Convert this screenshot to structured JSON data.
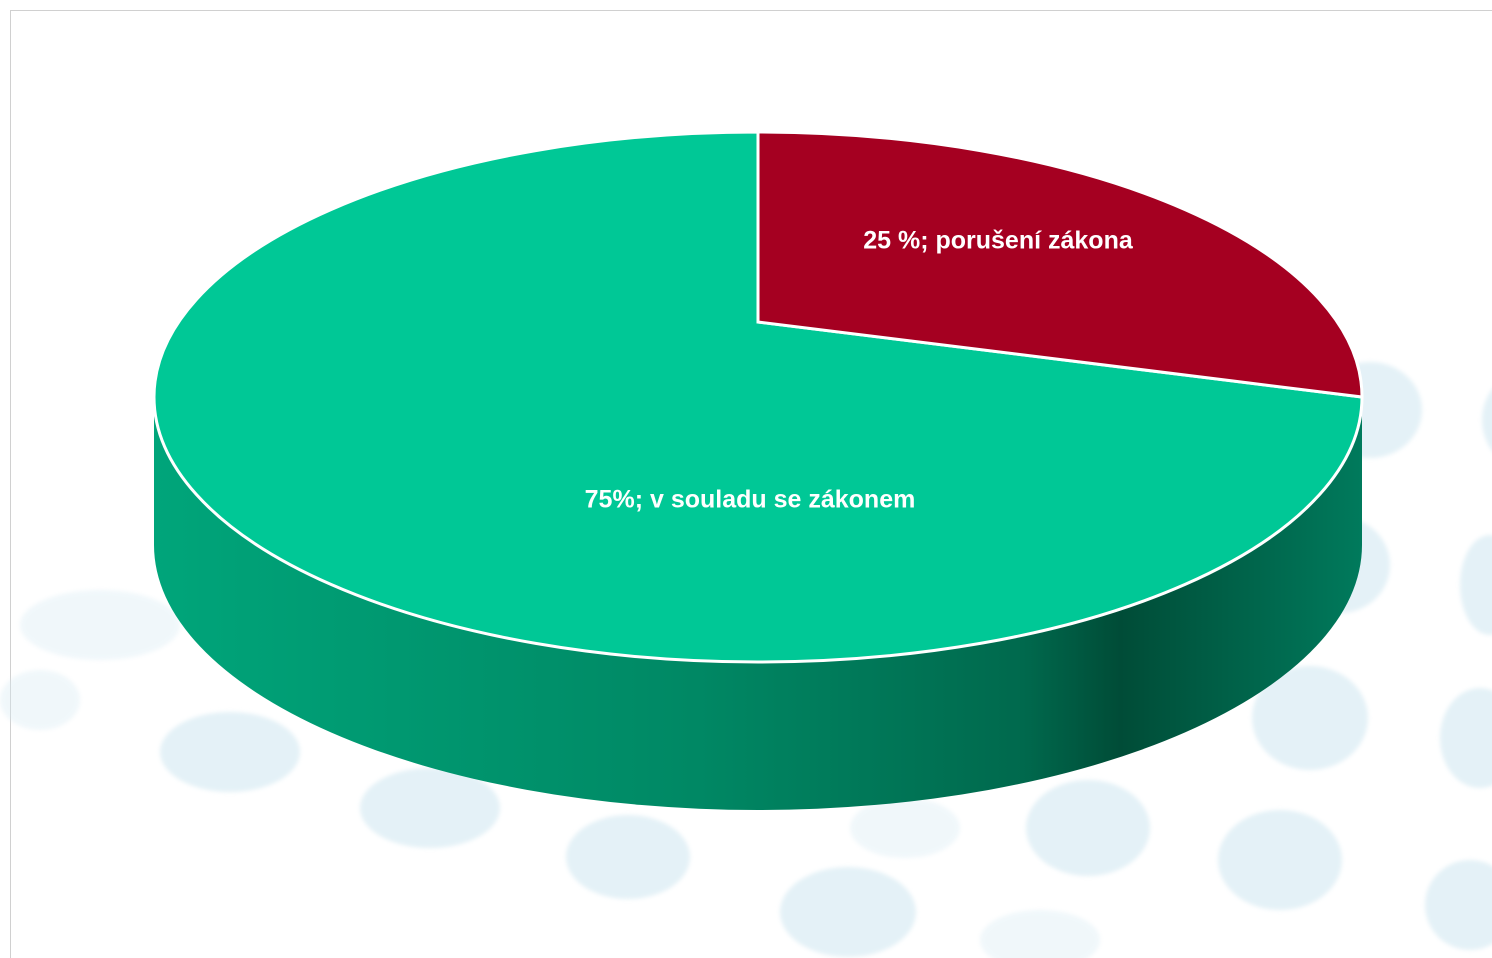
{
  "chart_data": {
    "type": "pie",
    "style": "3d",
    "slices": [
      {
        "label": "v souladu se zákonem",
        "value": 75,
        "display_label": "75%; v souladu se zákonem",
        "color": "#00C896",
        "side_color": "#007A5C"
      },
      {
        "label": "porušení zákona",
        "value": 25,
        "display_label": "25 %; porušení zákona",
        "color": "#A50021",
        "side_color": "#6E0016"
      }
    ],
    "legend": "none",
    "background": {
      "decoration": "light blue dots",
      "color": "#D6EAF3"
    }
  }
}
